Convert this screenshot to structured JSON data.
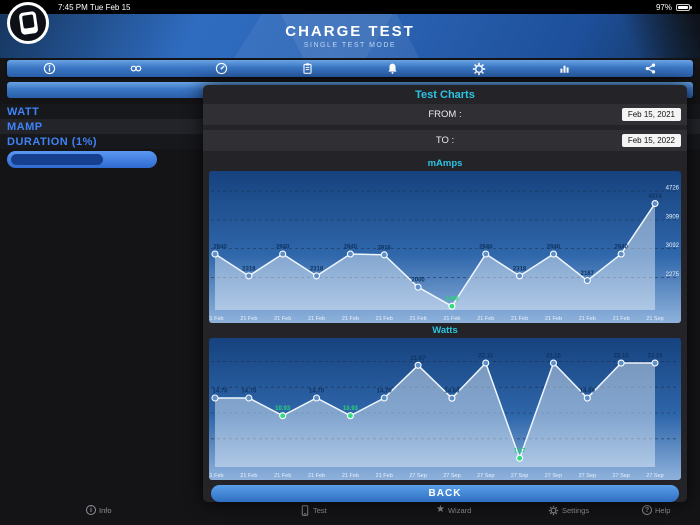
{
  "status_bar": {
    "time_date": "7:45 PM  Tue Feb 15",
    "battery_percent": "97%"
  },
  "header": {
    "title": "CHARGE TEST",
    "subtitle": "SINGLE TEST MODE"
  },
  "toolbar": {
    "icons": [
      "info",
      "infinity",
      "gauge",
      "clipboard",
      "bell",
      "gear",
      "bar-chart",
      "share"
    ]
  },
  "left_panel": {
    "rows": [
      {
        "label": "WATT"
      },
      {
        "label": "MAMP"
      },
      {
        "label": "DURATION (1%)"
      }
    ]
  },
  "modal": {
    "title": "Test Charts",
    "from_label": "FROM :",
    "from_value": "Feb 15, 2021",
    "to_label": "TO :",
    "to_value": "Feb 15, 2022",
    "back_label": "BACK"
  },
  "footer": {
    "items": [
      {
        "label": "Info"
      },
      {
        "label": "Test"
      },
      {
        "label": "Wizard"
      },
      {
        "label": "Settings"
      },
      {
        "label": "Help"
      }
    ]
  },
  "colors": {
    "accent_teal": "#2bc4e2",
    "accent_blue": "#3f83f7",
    "chart_point": "#5d8fcb",
    "chart_highlight_green": "#35db82"
  },
  "chart_data": [
    {
      "type": "line",
      "title": "mAmps",
      "categories": [
        "21 Feb",
        "21 Feb",
        "21 Feb",
        "21 Feb",
        "21 Feb",
        "21 Feb",
        "21 Feb",
        "21 Feb",
        "21 Feb",
        "21 Feb",
        "21 Feb",
        "21 Feb",
        "21 Feb",
        "21 Sep"
      ],
      "values": [
        2940,
        2318,
        2940,
        2318,
        2940,
        2916,
        2000,
        1458,
        2940,
        2318,
        2940,
        2187,
        2940,
        4374
      ],
      "point_labels": [
        "2940",
        "2318",
        "2940",
        "2318",
        "2940",
        "2916",
        "2000",
        "1458",
        "2940",
        "2318",
        "2940",
        "2187",
        "2940",
        "4374"
      ],
      "highlighted_indices": [
        7
      ],
      "yticks": [
        4726,
        3909,
        3092,
        2275
      ],
      "ylim": [
        1350,
        4900
      ],
      "grid": "dashed",
      "legend": "none"
    },
    {
      "type": "line",
      "title": "Watts",
      "categories": [
        "21 Feb",
        "21 Feb",
        "21 Feb",
        "21 Feb",
        "21 Feb",
        "21 Feb",
        "27 Sep",
        "27 Sep",
        "27 Sep",
        "27 Sep",
        "27 Sep",
        "27 Sep",
        "27 Sep",
        "27 Sep"
      ],
      "values": [
        14.7,
        14.7,
        10.93,
        14.7,
        10.93,
        14.7,
        21.67,
        14.66,
        22.15,
        1.87,
        22.15,
        14.69,
        22.15,
        22.15
      ],
      "point_labels": [
        "14.70",
        "14.70",
        "10.93",
        "14.70",
        "10.93",
        "14.70",
        "21.67",
        "14.66",
        "22.15",
        "1.87",
        "22.15",
        "14.69",
        "22.15",
        "22.15"
      ],
      "highlighted_indices": [
        2,
        4,
        9
      ],
      "yticks": [],
      "grid_values": [
        22.5,
        17,
        11.5,
        6
      ],
      "ylim": [
        0,
        24.5
      ],
      "grid": "dashed",
      "legend": "none"
    }
  ]
}
